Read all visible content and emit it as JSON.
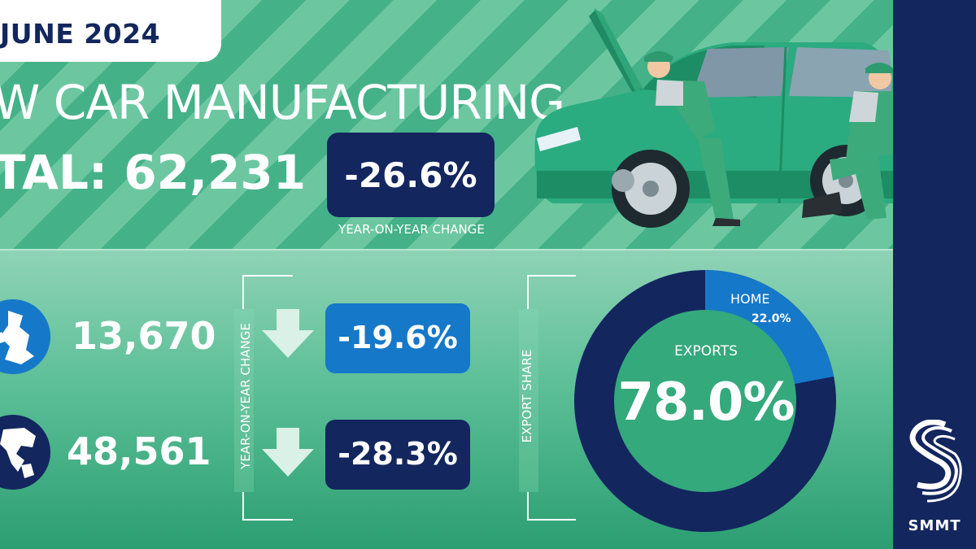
{
  "header": {
    "date": "JUNE 2024",
    "headline": "W CAR MANUFACTURING",
    "total": "TAL: 62,231",
    "yoy_value": "-26.6%",
    "yoy_label": "YEAR-ON-YEAR CHANGE"
  },
  "rows": [
    {
      "icon": "uk-globe-icon",
      "value": "13,670",
      "change": "-19.6%",
      "box_color": "#1678c9"
    },
    {
      "icon": "world-globe-icon",
      "value": "48,561",
      "change": "-28.3%",
      "box_color": "#13265e"
    }
  ],
  "change_axis_label": "YEAR-ON-YEAR CHANGE",
  "export_share": {
    "axis_label": "EXPORT SHARE",
    "home_label": "HOME",
    "home_value": "22.0%",
    "home_fraction": 0.22,
    "exports_label": "EXPORTS",
    "exports_value": "78.0%",
    "exports_fraction": 0.78,
    "home_color": "#1678c9",
    "exports_color": "#13265e"
  },
  "brand": {
    "name": "SMMT",
    "band_color": "#13265e"
  }
}
